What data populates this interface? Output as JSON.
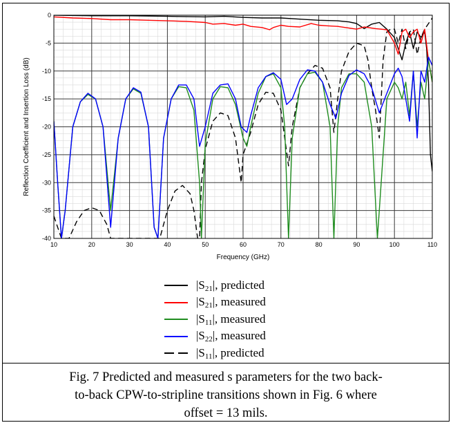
{
  "chart_data": {
    "type": "line",
    "xlabel": "Frequency (GHz)",
    "ylabel": "Reflection Coefficient and Insertion Loss (dB)",
    "xlim": [
      10,
      110
    ],
    "ylim": [
      -40,
      0
    ],
    "x_ticks": [
      10,
      20,
      30,
      40,
      50,
      60,
      70,
      80,
      90,
      100,
      110
    ],
    "y_ticks": [
      0,
      -5,
      -10,
      -15,
      -20,
      -25,
      -30,
      -35,
      -40
    ],
    "grid": true,
    "legend_position": "below",
    "series": [
      {
        "name": "|S21|, predicted",
        "color": "#000000",
        "dash": "solid",
        "x": [
          10,
          20,
          30,
          40,
          50,
          55,
          60,
          65,
          70,
          75,
          80,
          85,
          88,
          90,
          92,
          94,
          96,
          98,
          100,
          101,
          102,
          103,
          104,
          105,
          106,
          107,
          108,
          108.5,
          109,
          109.5,
          110
        ],
        "y": [
          0,
          -0.1,
          -0.1,
          -0.2,
          -0.3,
          -0.2,
          -0.4,
          -0.5,
          -0.5,
          -0.7,
          -0.9,
          -1.0,
          -1.2,
          -1.5,
          -2.4,
          -1.6,
          -1.3,
          -2.5,
          -4,
          -6,
          -8,
          -5,
          -3,
          -6,
          -3,
          -4,
          -3,
          -6,
          -12,
          -25,
          -28
        ]
      },
      {
        "name": "|S21|, measured",
        "color": "#ff0000",
        "dash": "solid",
        "x": [
          10,
          15,
          20,
          25,
          30,
          35,
          40,
          45,
          50,
          52,
          55,
          58,
          60,
          62,
          65,
          67,
          68,
          70,
          72,
          75,
          78,
          80,
          82,
          85,
          88,
          90,
          92,
          95,
          98,
          100,
          101,
          102,
          103,
          104,
          105,
          106,
          107,
          108,
          109,
          110
        ],
        "y": [
          -0.3,
          -0.5,
          -0.6,
          -0.8,
          -0.8,
          -0.9,
          -1.0,
          -1.1,
          -1.3,
          -1.6,
          -1.5,
          -1.8,
          -1.6,
          -2.0,
          -2.2,
          -2.6,
          -2.2,
          -1.8,
          -2.0,
          -2.1,
          -1.5,
          -1.8,
          -1.9,
          -2.0,
          -2.3,
          -2.5,
          -2.1,
          -2.4,
          -2.6,
          -5,
          -7,
          -3,
          -2.5,
          -4,
          -3,
          -2.5,
          -5,
          -2.5,
          -8,
          -12
        ]
      },
      {
        "name": "|S11|, measured",
        "color": "#1e8c1e",
        "dash": "solid",
        "x": [
          10,
          11,
          12,
          13,
          15,
          17,
          19,
          21,
          23,
          25,
          27,
          29,
          31,
          33,
          35,
          36.5,
          37.5,
          39,
          41,
          43,
          45,
          47,
          48.5,
          49,
          50,
          52,
          54,
          56,
          58,
          60,
          61,
          62,
          64,
          66,
          68,
          70,
          71,
          72,
          73,
          75,
          77,
          79,
          81,
          83,
          84,
          85,
          86,
          88,
          90,
          92,
          94,
          95.5,
          96.5,
          98,
          100,
          101,
          102,
          103,
          104,
          105,
          106,
          107,
          108,
          109,
          110
        ],
        "y": [
          -19,
          -30,
          -40,
          -35,
          -20,
          -15.5,
          -14.2,
          -15,
          -20,
          -35,
          -22,
          -15,
          -13.2,
          -14,
          -20,
          -38,
          -40,
          -22,
          -15,
          -12.8,
          -13,
          -17,
          -30,
          -40,
          -23,
          -15,
          -12.8,
          -13,
          -16,
          -22,
          -23.5,
          -20,
          -14,
          -11,
          -10.5,
          -13,
          -20,
          -40,
          -22,
          -13,
          -10.5,
          -10.2,
          -12,
          -20,
          -40,
          -20,
          -13,
          -10.5,
          -10.5,
          -12,
          -20,
          -40,
          -30,
          -15,
          -12,
          -13,
          -15,
          -12,
          -18,
          -10,
          -20,
          -12,
          -15,
          -8,
          -12
        ]
      },
      {
        "name": "|S22|, measured",
        "color": "#0000ff",
        "dash": "solid",
        "x": [
          10,
          11,
          12,
          13,
          15,
          17,
          19,
          21,
          23,
          25,
          27,
          29,
          31,
          33,
          35,
          36.5,
          37.5,
          39,
          41,
          43,
          45,
          47,
          48.5,
          50,
          52,
          54,
          56,
          58,
          59.5,
          61,
          62,
          64,
          66,
          68,
          70,
          71.5,
          73,
          75,
          77,
          79,
          81,
          83,
          84.5,
          86,
          88,
          90,
          92,
          94,
          96,
          98,
          100,
          101,
          102,
          103,
          104,
          105,
          106,
          107,
          108,
          109,
          110
        ],
        "y": [
          -19,
          -30,
          -40,
          -35,
          -20,
          -15.5,
          -14,
          -15,
          -20,
          -38,
          -22,
          -15,
          -13,
          -13.8,
          -20,
          -38,
          -40,
          -22,
          -15,
          -12.5,
          -12.5,
          -15,
          -23.5,
          -20,
          -14,
          -12.5,
          -12.3,
          -15,
          -20,
          -21,
          -18,
          -13,
          -11,
          -10.3,
          -11.5,
          -16,
          -15,
          -11.5,
          -9.8,
          -10,
          -12,
          -16,
          -18.5,
          -14,
          -10.8,
          -9.8,
          -10.5,
          -13,
          -17.5,
          -14,
          -10.5,
          -9.5,
          -11,
          -15,
          -19,
          -10,
          -22,
          -10,
          -12,
          -7.5,
          -9
        ]
      },
      {
        "name": "|S11|, predicted",
        "color": "#000000",
        "dash": "dashed",
        "x": [
          10,
          11,
          12,
          14,
          16,
          18,
          20,
          22,
          24,
          25,
          26,
          28,
          30,
          32,
          35,
          37,
          38,
          40,
          42,
          44,
          46,
          47,
          48,
          48.5,
          49,
          50,
          52,
          54,
          56,
          58,
          59.5,
          60,
          61,
          62,
          64,
          66,
          68,
          70,
          71,
          72,
          73,
          75,
          77,
          79,
          81,
          83,
          84,
          85,
          86,
          88,
          90,
          92,
          93,
          94,
          95,
          96,
          97,
          98,
          99,
          100,
          101,
          102,
          103,
          104,
          105,
          106,
          107,
          108,
          109,
          110
        ],
        "y": [
          -36,
          -38,
          -40,
          -40,
          -37,
          -35,
          -34.5,
          -35,
          -37.5,
          -40,
          -40,
          -40,
          -40,
          -40,
          -40,
          -40,
          -40,
          -35,
          -31.5,
          -30.5,
          -32,
          -35,
          -40,
          -40,
          -30,
          -24,
          -19,
          -17.5,
          -18,
          -22,
          -30,
          -25,
          -23,
          -21,
          -16,
          -13.8,
          -14,
          -17,
          -22,
          -27,
          -20,
          -13,
          -10.5,
          -9,
          -9.5,
          -13,
          -21,
          -15,
          -10,
          -6.5,
          -5,
          -5.5,
          -8,
          -13,
          -17,
          -22,
          -8,
          -3,
          -2.5,
          -2.5,
          -5,
          -2.5,
          -6,
          -3,
          -2.5,
          -7,
          -4,
          -2.5,
          -1.5,
          -0.5
        ]
      }
    ]
  },
  "legend": {
    "items": [
      {
        "prefix": "|S",
        "sub": "21",
        "suffix": "|, predicted"
      },
      {
        "prefix": "|S",
        "sub": "21",
        "suffix": "|, measured"
      },
      {
        "prefix": "|S",
        "sub": "11",
        "suffix": "|, measured"
      },
      {
        "prefix": "|S",
        "sub": "22",
        "suffix": "|, measured"
      },
      {
        "prefix": "|S",
        "sub": "11",
        "suffix": "|, predicted"
      }
    ]
  },
  "caption": {
    "line1": "Fig. 7   Predicted and measured s parameters for the two back-",
    "line2": "to-back CPW-to-stripline transitions shown in Fig. 6 where",
    "line3": "offset = 13 mils."
  }
}
